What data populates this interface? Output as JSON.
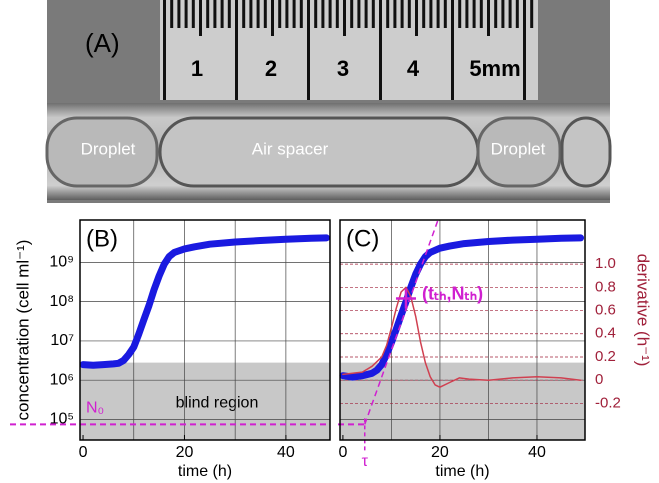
{
  "photo": {
    "label": "(A)",
    "ruler_labels": [
      "1",
      "2",
      "3",
      "4",
      "5mm"
    ],
    "droplet_left": "Droplet",
    "spacer": "Air spacer",
    "droplet_right": "Droplet"
  },
  "chart_data": [
    {
      "type": "line",
      "panel": "(B)",
      "xlabel": "time (h)",
      "ylabel": "concentration (cell ml⁻¹)",
      "xlim": [
        -0.6,
        48.7
      ],
      "xticks": [
        0,
        20,
        40
      ],
      "xgrid": [
        10,
        20,
        30,
        40
      ],
      "ylog": true,
      "ylim": [
        30000,
        12000000000
      ],
      "yticks": [
        {
          "value": 100000,
          "label": "10⁵"
        },
        {
          "value": 1000000,
          "label": "10⁶"
        },
        {
          "value": 10000000,
          "label": "10⁷"
        },
        {
          "value": 100000000,
          "label": "10⁸"
        },
        {
          "value": 1000000000,
          "label": "10⁹"
        }
      ],
      "grid": true,
      "blind_region": {
        "top": 2800000,
        "label": "blind region",
        "color": "#c8c8c8"
      },
      "n0": {
        "value": 75000,
        "label": "N₀",
        "color": "#d020d0"
      },
      "series": [
        {
          "color": "#1a1ae0",
          "x": [
            0,
            2,
            4,
            6,
            7,
            8,
            9,
            10,
            11,
            12,
            13,
            14,
            15,
            16,
            17,
            18,
            20,
            22,
            25,
            30,
            35,
            40,
            45,
            48
          ],
          "values": [
            2500000,
            2400000,
            2500000,
            2600000,
            2700000,
            3200000,
            4500000,
            7000000,
            15000000,
            35000000,
            80000000,
            200000000,
            450000000,
            900000000,
            1400000000,
            1800000000,
            2200000000,
            2500000000,
            2900000000,
            3300000000,
            3600000000,
            3900000000,
            4100000000,
            4200000000
          ]
        }
      ]
    },
    {
      "type": "line",
      "panel": "(C)",
      "xlabel": "time (h)",
      "y2label": "derivative (h⁻¹)",
      "xlim": [
        -0.6,
        49.9
      ],
      "xticks": [
        0,
        20,
        40
      ],
      "xgrid": [
        10,
        20,
        30,
        40
      ],
      "ylog": true,
      "ylim": [
        30000,
        12000000000
      ],
      "ygrid": [
        100000,
        1000000,
        10000000,
        100000000,
        1000000000
      ],
      "y2lim": [
        -0.515,
        1.38
      ],
      "y2ticks": [
        -0.2,
        0,
        0.2,
        0.4,
        0.6,
        0.8,
        {
          "value": 1,
          "label": "1.0"
        }
      ],
      "y2color": "#a0203a",
      "grid": true,
      "blind_region": {
        "top": 2800000,
        "color": "#c8c8c8"
      },
      "n0": {
        "value": 75000,
        "color": "#d020d0"
      },
      "tangent": {
        "x": [
          4.5,
          19.6
        ],
        "values": [
          75000,
          12000000000
        ],
        "color": "#d020d0"
      },
      "threshold": {
        "x": 13,
        "value": 120000000,
        "label": "(tₜₕ,Nₜₕ)"
      },
      "tau": {
        "x": 4.5,
        "label": "τ"
      },
      "series": [
        {
          "color": "#1a1ae0",
          "x": [
            0,
            2,
            4,
            6,
            7,
            8,
            9,
            10,
            11,
            12,
            13,
            14,
            15,
            16,
            17,
            18,
            20,
            22,
            25,
            30,
            35,
            40,
            45,
            49
          ],
          "values": [
            1300000,
            1200000,
            1300000,
            1500000,
            1800000,
            2500000,
            4500000,
            9000000,
            20000000,
            45000000,
            100000000,
            230000000,
            500000000,
            900000000,
            1400000000,
            1800000000,
            2300000000,
            2600000000,
            3000000000,
            3400000000,
            3700000000,
            3900000000,
            4100000000,
            4200000000
          ]
        },
        {
          "color": "#d04050",
          "axis": "y2",
          "x": [
            0,
            2,
            4,
            6,
            8,
            9,
            10,
            11,
            12,
            13,
            14,
            15,
            16,
            17,
            18,
            19,
            20,
            22,
            24,
            26,
            30,
            35,
            40,
            45,
            49
          ],
          "values": [
            0.05,
            0.06,
            0.07,
            0.12,
            0.2,
            0.3,
            0.45,
            0.62,
            0.76,
            0.8,
            0.72,
            0.55,
            0.33,
            0.15,
            0.03,
            -0.04,
            -0.06,
            -0.02,
            0.02,
            0.01,
            0.0,
            0.02,
            0.03,
            0.02,
            0.0
          ]
        }
      ]
    }
  ]
}
